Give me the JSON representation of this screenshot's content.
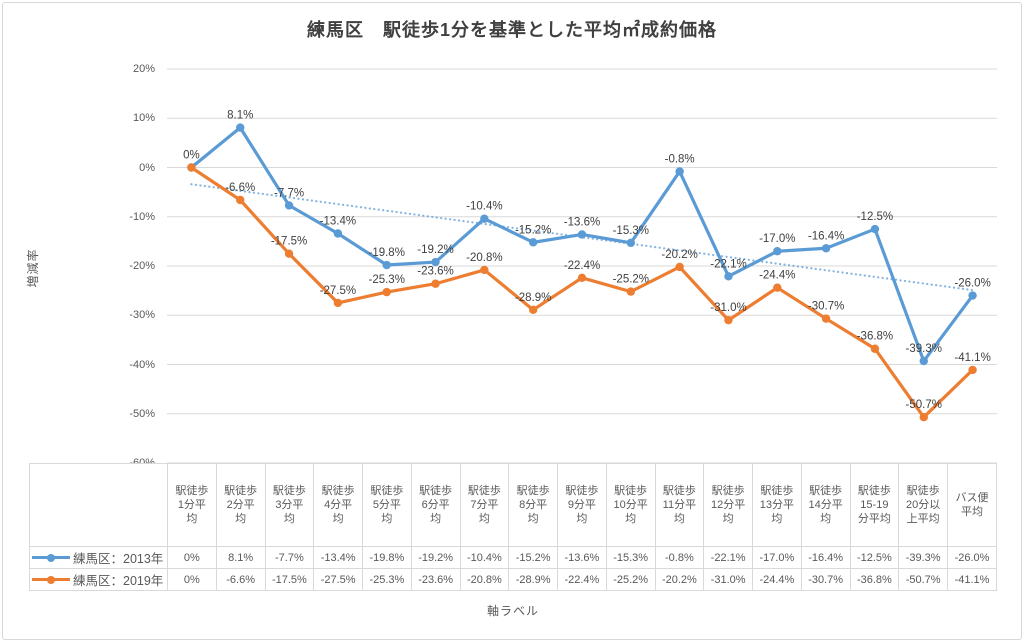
{
  "chart_data": {
    "type": "line",
    "title": "練馬区　駅徒歩1分を基準とした平均㎡成約価格",
    "xlabel": "軸ラベル",
    "ylabel": "増減率",
    "ylim": [
      -60,
      20
    ],
    "ytick_step": 10,
    "ytick_suffix": "%",
    "grid": true,
    "legend_position": "data-table-left",
    "categories": [
      "駅徒歩1分平均",
      "駅徒歩2分平均",
      "駅徒歩3分平均",
      "駅徒歩4分平均",
      "駅徒歩5分平均",
      "駅徒歩6分平均",
      "駅徒歩7分平均",
      "駅徒歩8分平均",
      "駅徒歩9分平均",
      "駅徒歩10分平均",
      "駅徒歩11分平均",
      "駅徒歩12分平均",
      "駅徒歩13分平均",
      "駅徒歩14分平均",
      "駅徒歩15-19分平均",
      "駅徒歩20分以上平均",
      "バス便平均"
    ],
    "series": [
      {
        "name": "練馬区：2013年",
        "color": "#5B9BD5",
        "values": [
          0,
          8.1,
          -7.7,
          -13.4,
          -19.8,
          -19.2,
          -10.4,
          -15.2,
          -13.6,
          -15.3,
          -0.8,
          -22.1,
          -17.0,
          -16.4,
          -12.5,
          -39.3,
          -26.0
        ]
      },
      {
        "name": "練馬区：2019年",
        "color": "#ED7D31",
        "values": [
          0,
          -6.6,
          -17.5,
          -27.5,
          -25.3,
          -23.6,
          -20.8,
          -28.9,
          -22.4,
          -25.2,
          -20.2,
          -31.0,
          -24.4,
          -30.7,
          -36.8,
          -50.7,
          -41.1
        ]
      }
    ],
    "trendline": {
      "series": "練馬区：2013年",
      "style": "dotted",
      "color": "#5B9BD5",
      "start_pct": -3.4,
      "end_pct": -24.9
    },
    "colors": {
      "grid": "#D9D9D9",
      "axis_text": "#595959",
      "data_label": "#404040",
      "title_text": "#404040",
      "frame_border": "#D7D7D7"
    }
  }
}
